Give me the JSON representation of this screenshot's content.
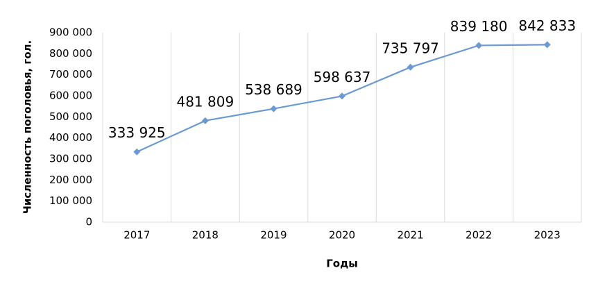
{
  "chart_data": {
    "type": "line",
    "x_label": "Годы",
    "y_label": "Численность поголовья, гол.",
    "categories": [
      "2017",
      "2018",
      "2019",
      "2020",
      "2021",
      "2022",
      "2023"
    ],
    "series": [
      {
        "name": "Численность поголовья",
        "color": "#6a9ad0",
        "values": [
          333925,
          481809,
          538689,
          598637,
          735797,
          839180,
          842833
        ],
        "value_labels": [
          "333 925",
          "481 809",
          "538 689",
          "598 637",
          "735 797",
          "839 180",
          "842 833"
        ]
      }
    ],
    "ylim": [
      0,
      900000
    ],
    "yticks": [
      0,
      {
        "value": 100000,
        "label": "100 000"
      },
      {
        "value": 200000,
        "label": "200 000"
      },
      {
        "value": 300000,
        "label": "300 000"
      },
      {
        "value": 400000,
        "label": "400 000"
      },
      {
        "value": 500000,
        "label": "500 000"
      },
      {
        "value": 600000,
        "label": "600 000"
      },
      {
        "value": 700000,
        "label": "700 000"
      },
      {
        "value": 800000,
        "label": "800 000"
      },
      {
        "value": 900000,
        "label": "900 000"
      }
    ],
    "category_grid": true
  }
}
